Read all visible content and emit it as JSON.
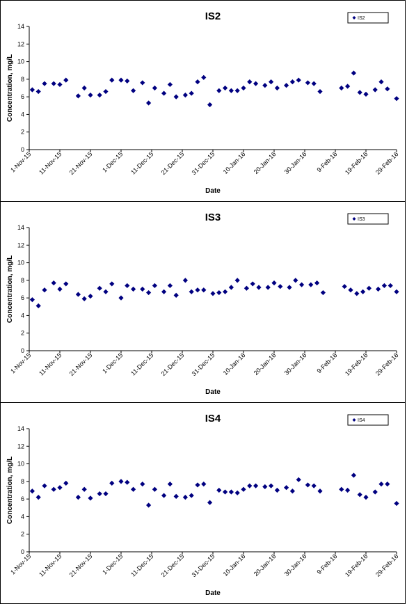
{
  "chart_data": [
    {
      "type": "scatter",
      "title": "IS2",
      "xlabel": "Date",
      "ylabel": "Concentration, mg/L",
      "ylim": [
        0,
        14
      ],
      "yticks": [
        0,
        2,
        4,
        6,
        8,
        10,
        12,
        14
      ],
      "xlim": [
        "2015-11-01",
        "2016-02-29"
      ],
      "xticks": [
        "1-Nov-15",
        "11-Nov-15",
        "21-Nov-15",
        "1-Dec-15",
        "11-Dec-15",
        "21-Dec-15",
        "31-Dec-15",
        "10-Jan-16",
        "20-Jan-16",
        "30-Jan-16",
        "9-Feb-16",
        "19-Feb-16",
        "29-Feb-16"
      ],
      "legend_position": "top-right",
      "marker": "diamond",
      "color": "#000080",
      "series": [
        {
          "name": "IS2",
          "x": [
            "2015-11-02",
            "2015-11-04",
            "2015-11-06",
            "2015-11-09",
            "2015-11-11",
            "2015-11-13",
            "2015-11-17",
            "2015-11-19",
            "2015-11-21",
            "2015-11-24",
            "2015-11-26",
            "2015-11-28",
            "2015-12-01",
            "2015-12-03",
            "2015-12-05",
            "2015-12-08",
            "2015-12-10",
            "2015-12-12",
            "2015-12-15",
            "2015-12-17",
            "2015-12-19",
            "2015-12-22",
            "2015-12-24",
            "2015-12-26",
            "2015-12-28",
            "2015-12-30",
            "2016-01-02",
            "2016-01-04",
            "2016-01-06",
            "2016-01-08",
            "2016-01-10",
            "2016-01-12",
            "2016-01-14",
            "2016-01-17",
            "2016-01-19",
            "2016-01-21",
            "2016-01-24",
            "2016-01-26",
            "2016-01-28",
            "2016-01-31",
            "2016-02-02",
            "2016-02-04",
            "2016-02-11",
            "2016-02-13",
            "2016-02-15",
            "2016-02-17",
            "2016-02-19",
            "2016-02-22",
            "2016-02-24",
            "2016-02-26",
            "2016-02-29"
          ],
          "values": [
            6.8,
            6.6,
            7.5,
            7.5,
            7.4,
            7.9,
            6.1,
            7.0,
            6.2,
            6.2,
            6.6,
            7.9,
            7.9,
            7.8,
            6.7,
            7.6,
            5.3,
            7.0,
            6.4,
            7.4,
            6.0,
            6.2,
            6.4,
            7.7,
            8.2,
            5.1,
            6.7,
            7.0,
            6.7,
            6.7,
            7.0,
            7.7,
            7.5,
            7.3,
            7.7,
            7.0,
            7.3,
            7.7,
            7.9,
            7.6,
            7.5,
            6.6,
            7.0,
            7.2,
            8.7,
            6.5,
            6.3,
            6.8,
            7.7,
            6.9,
            5.8
          ]
        }
      ]
    },
    {
      "type": "scatter",
      "title": "IS3",
      "xlabel": "Date",
      "ylabel": "Concentration, mg/L",
      "ylim": [
        0,
        14
      ],
      "yticks": [
        0,
        2,
        4,
        6,
        8,
        10,
        12,
        14
      ],
      "xlim": [
        "2015-11-01",
        "2016-02-29"
      ],
      "xticks": [
        "1-Nov-15",
        "11-Nov-15",
        "21-Nov-15",
        "1-Dec-15",
        "11-Dec-15",
        "21-Dec-15",
        "31-Dec-15",
        "10-Jan-16",
        "20-Jan-16",
        "30-Jan-16",
        "9-Feb-16",
        "19-Feb-16",
        "29-Feb-16"
      ],
      "legend_position": "top-right",
      "marker": "diamond",
      "color": "#000080",
      "series": [
        {
          "name": "IS3",
          "x": [
            "2015-11-02",
            "2015-11-04",
            "2015-11-06",
            "2015-11-09",
            "2015-11-11",
            "2015-11-13",
            "2015-11-17",
            "2015-11-19",
            "2015-11-21",
            "2015-11-24",
            "2015-11-26",
            "2015-11-28",
            "2015-12-01",
            "2015-12-03",
            "2015-12-05",
            "2015-12-08",
            "2015-12-10",
            "2015-12-12",
            "2015-12-15",
            "2015-12-17",
            "2015-12-19",
            "2015-12-22",
            "2015-12-24",
            "2015-12-26",
            "2015-12-28",
            "2015-12-31",
            "2016-01-02",
            "2016-01-04",
            "2016-01-06",
            "2016-01-08",
            "2016-01-11",
            "2016-01-13",
            "2016-01-15",
            "2016-01-18",
            "2016-01-20",
            "2016-01-22",
            "2016-01-25",
            "2016-01-27",
            "2016-01-29",
            "2016-02-01",
            "2016-02-03",
            "2016-02-05",
            "2016-02-12",
            "2016-02-14",
            "2016-02-16",
            "2016-02-18",
            "2016-02-20",
            "2016-02-23",
            "2016-02-25",
            "2016-02-27",
            "2016-02-29"
          ],
          "values": [
            5.8,
            5.1,
            6.9,
            7.7,
            7.0,
            7.6,
            6.4,
            5.9,
            6.2,
            7.1,
            6.7,
            7.6,
            6.0,
            7.4,
            7.0,
            7.0,
            6.6,
            7.4,
            6.7,
            7.4,
            6.3,
            8.0,
            6.7,
            6.9,
            6.9,
            6.5,
            6.6,
            6.7,
            7.2,
            8.0,
            7.1,
            7.6,
            7.2,
            7.2,
            7.7,
            7.3,
            7.2,
            8.0,
            7.5,
            7.5,
            7.7,
            6.6,
            7.3,
            6.9,
            6.5,
            6.7,
            7.1,
            7.0,
            7.4,
            7.4,
            6.7
          ]
        }
      ]
    },
    {
      "type": "scatter",
      "title": "IS4",
      "xlabel": "Date",
      "ylabel": "Concentration, mg/L",
      "ylim": [
        0,
        14
      ],
      "yticks": [
        0,
        2,
        4,
        6,
        8,
        10,
        12,
        14
      ],
      "xlim": [
        "2015-11-01",
        "2016-02-29"
      ],
      "xticks": [
        "1-Nov-15",
        "11-Nov-15",
        "21-Nov-15",
        "1-Dec-15",
        "11-Dec-15",
        "21-Dec-15",
        "31-Dec-15",
        "10-Jan-16",
        "20-Jan-16",
        "30-Jan-16",
        "9-Feb-16",
        "19-Feb-16",
        "29-Feb-16"
      ],
      "legend_position": "top-right",
      "marker": "diamond",
      "color": "#000080",
      "series": [
        {
          "name": "IS4",
          "x": [
            "2015-11-02",
            "2015-11-04",
            "2015-11-06",
            "2015-11-09",
            "2015-11-11",
            "2015-11-13",
            "2015-11-17",
            "2015-11-19",
            "2015-11-21",
            "2015-11-24",
            "2015-11-26",
            "2015-11-28",
            "2015-12-01",
            "2015-12-03",
            "2015-12-05",
            "2015-12-08",
            "2015-12-10",
            "2015-12-12",
            "2015-12-15",
            "2015-12-17",
            "2015-12-19",
            "2015-12-22",
            "2015-12-24",
            "2015-12-26",
            "2015-12-28",
            "2015-12-30",
            "2016-01-02",
            "2016-01-04",
            "2016-01-06",
            "2016-01-08",
            "2016-01-10",
            "2016-01-12",
            "2016-01-14",
            "2016-01-17",
            "2016-01-19",
            "2016-01-21",
            "2016-01-24",
            "2016-01-26",
            "2016-01-28",
            "2016-01-31",
            "2016-02-02",
            "2016-02-04",
            "2016-02-11",
            "2016-02-13",
            "2016-02-15",
            "2016-02-17",
            "2016-02-19",
            "2016-02-22",
            "2016-02-24",
            "2016-02-26",
            "2016-02-29"
          ],
          "values": [
            6.9,
            6.2,
            7.5,
            7.1,
            7.3,
            7.8,
            6.2,
            7.1,
            6.1,
            6.6,
            6.6,
            7.8,
            8.0,
            7.9,
            7.1,
            7.7,
            5.3,
            7.1,
            6.4,
            7.7,
            6.3,
            6.2,
            6.4,
            7.6,
            7.7,
            5.6,
            7.0,
            6.8,
            6.8,
            6.7,
            7.1,
            7.5,
            7.5,
            7.4,
            7.5,
            7.0,
            7.3,
            6.9,
            8.2,
            7.6,
            7.5,
            6.9,
            7.1,
            7.0,
            8.7,
            6.5,
            6.2,
            6.8,
            7.7,
            7.7,
            5.5
          ]
        }
      ]
    }
  ]
}
